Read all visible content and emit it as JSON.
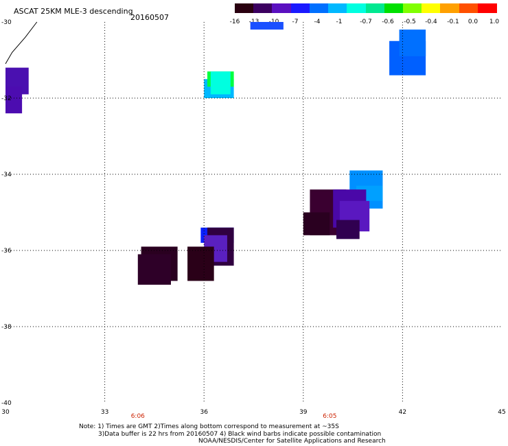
{
  "header": {
    "title": "ASCAT 25KM MLE-3 descending",
    "date": "20160507"
  },
  "colorbar": {
    "labels": [
      "-16",
      "-13",
      "-10",
      "-7",
      "-4",
      "-1",
      "-0.7",
      "-0.6",
      "-0.5",
      "-0.4",
      "-0.1",
      "0.0",
      "1.0"
    ],
    "colors": [
      "#2a0010",
      "#3c0060",
      "#5a10c0",
      "#1a1aff",
      "#0070ff",
      "#00b8ff",
      "#00ffe0",
      "#00e890",
      "#00e000",
      "#80ff00",
      "#ffff00",
      "#ffa000",
      "#ff5000",
      "#ff0000"
    ]
  },
  "map": {
    "lat_labels": [
      "-30",
      "-32",
      "-34",
      "-36",
      "-38",
      "-40"
    ],
    "lon_labels": [
      "30",
      "33",
      "36",
      "39",
      "42",
      "45"
    ],
    "time_labels": [
      "6:06",
      "6:05"
    ],
    "lat_range": [
      -40,
      -30
    ],
    "lon_range": [
      30,
      45
    ],
    "cells": [
      {
        "lon": 30.0,
        "lat": -31.2,
        "lon2": 30.7,
        "lat2": -31.9,
        "color": "#4a10b0"
      },
      {
        "lon": 30.0,
        "lat": -31.7,
        "lon2": 30.5,
        "lat2": -32.4,
        "color": "#4c0cb0"
      },
      {
        "lon": 36.0,
        "lat": -31.5,
        "lon2": 36.9,
        "lat2": -32.0,
        "color": "#00b8ff"
      },
      {
        "lon": 36.1,
        "lat": -31.3,
        "lon2": 36.9,
        "lat2": -31.7,
        "color": "#00ff40"
      },
      {
        "lon": 36.2,
        "lat": -31.3,
        "lon2": 36.8,
        "lat2": -31.9,
        "color": "#00ffe0"
      },
      {
        "lon": 41.6,
        "lat": -30.5,
        "lon2": 42.7,
        "lat2": -31.4,
        "color": "#0060ff"
      },
      {
        "lon": 41.9,
        "lat": -30.2,
        "lon2": 42.7,
        "lat2": -30.9,
        "color": "#0070ff"
      },
      {
        "lon": 37.4,
        "lat": -30.0,
        "lon2": 38.4,
        "lat2": -30.2,
        "color": "#1a50ff"
      },
      {
        "lon": 40.4,
        "lat": -33.9,
        "lon2": 41.4,
        "lat2": -34.9,
        "color": "#0090ff"
      },
      {
        "lon": 40.6,
        "lat": -34.3,
        "lon2": 41.4,
        "lat2": -34.7,
        "color": "#00a0ff"
      },
      {
        "lon": 39.2,
        "lat": -34.4,
        "lon2": 40.3,
        "lat2": -35.6,
        "color": "#3a0030"
      },
      {
        "lon": 39.0,
        "lat": -35.0,
        "lon2": 39.8,
        "lat2": -35.6,
        "color": "#2a0020"
      },
      {
        "lon": 39.9,
        "lat": -34.4,
        "lon2": 40.9,
        "lat2": -35.4,
        "color": "#4a08a8"
      },
      {
        "lon": 40.1,
        "lat": -34.7,
        "lon2": 41.0,
        "lat2": -35.5,
        "color": "#5a18c0"
      },
      {
        "lon": 40.0,
        "lat": -35.2,
        "lon2": 40.7,
        "lat2": -35.7,
        "color": "#300050"
      },
      {
        "lon": 35.9,
        "lat": -35.4,
        "lon2": 36.9,
        "lat2": -35.8,
        "color": "#0a20ff"
      },
      {
        "lon": 36.1,
        "lat": -35.4,
        "lon2": 36.9,
        "lat2": -36.4,
        "color": "#300040"
      },
      {
        "lon": 36.0,
        "lat": -35.6,
        "lon2": 36.7,
        "lat2": -36.3,
        "color": "#5a20c0"
      },
      {
        "lon": 35.5,
        "lat": -35.9,
        "lon2": 36.3,
        "lat2": -36.8,
        "color": "#2a0018"
      },
      {
        "lon": 34.1,
        "lat": -35.9,
        "lon2": 35.2,
        "lat2": -36.8,
        "color": "#2a0020"
      },
      {
        "lon": 34.0,
        "lat": -36.1,
        "lon2": 35.0,
        "lat2": -36.9,
        "color": "#2e0028"
      }
    ],
    "barb": {
      "lon": [
        30.0,
        30.2,
        30.6,
        30.95
      ],
      "lat": [
        -31.1,
        -30.8,
        -30.4,
        -30.0
      ]
    }
  },
  "notes": [
    "Note: 1) Times are GMT 2)Times along bottom correspond to measurement at ~35S",
    "3)Data buffer is 22 hrs from 20160507 4) Black wind barbs indicate possible contamination",
    "NOAA/NESDIS/Center for Satellite Applications and Research"
  ]
}
